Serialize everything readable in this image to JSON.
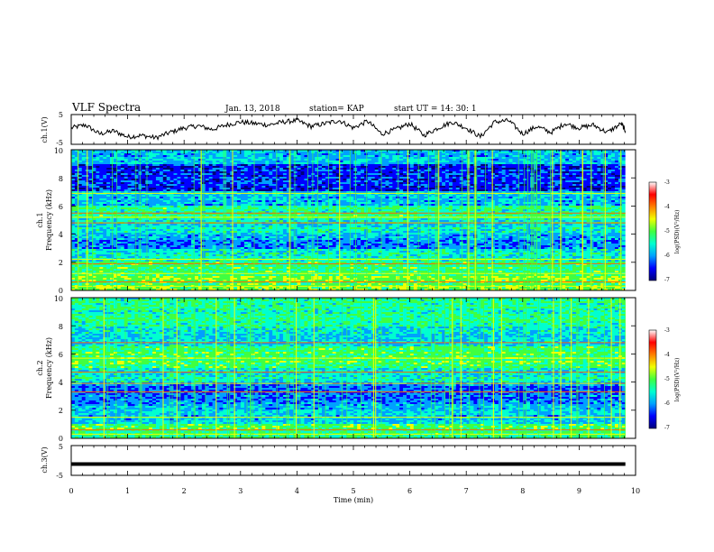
{
  "header": {
    "title": "VLF Spectra",
    "date": "Jan. 13, 2018",
    "station": "station= KAP",
    "start": "start  UT =   14: 30: 1"
  },
  "colors": {
    "colormap": [
      "#00007a",
      "#0000ff",
      "#00a0ff",
      "#00ffd0",
      "#40ff40",
      "#f0ff00",
      "#ff8000",
      "#ff0000",
      "#ffffff"
    ],
    "trace": "#000000"
  },
  "chart_data": [
    {
      "type": "line",
      "panel": "ch1-voltage",
      "ylabel": "ch.1(V)",
      "ylim": [
        -5,
        5
      ],
      "yticks": [
        "5",
        "-5"
      ],
      "x": [
        0,
        0.25,
        0.5,
        0.75,
        1.0,
        1.25,
        1.5,
        1.75,
        2.0,
        2.25,
        2.5,
        2.75,
        3.0,
        3.25,
        3.5,
        3.75,
        4.0,
        4.25,
        4.5,
        4.75,
        5.0,
        5.25,
        5.5,
        5.75,
        6.0,
        6.25,
        6.5,
        6.75,
        7.0,
        7.25,
        7.5,
        7.75,
        8.0,
        8.25,
        8.5,
        8.75,
        9.0,
        9.25,
        9.5,
        9.75,
        9.82
      ],
      "values": [
        0.5,
        1.5,
        -1.5,
        -0.5,
        -2.5,
        -2.0,
        -2.8,
        -1.0,
        0.5,
        1.2,
        0.0,
        1.5,
        2.5,
        2.0,
        1.5,
        2.5,
        3.0,
        1.0,
        2.0,
        3.0,
        0.5,
        2.8,
        -1.5,
        0.0,
        2.0,
        -2.0,
        0.5,
        2.5,
        0.5,
        -2.5,
        2.5,
        3.0,
        -1.5,
        1.0,
        -1.0,
        2.0,
        0.5,
        1.5,
        -1.0,
        2.0,
        -0.5
      ]
    },
    {
      "type": "heatmap",
      "panel": "ch1-spectrogram",
      "ylabel": "ch.1",
      "ylabel2": "Frequency  (kHz)",
      "ylim": [
        0,
        10
      ],
      "yticks": [
        "0",
        "2",
        "4",
        "6",
        "8",
        "10"
      ],
      "colorbar": {
        "label": "log(PSD)(V²/Hz)",
        "range": [
          -7,
          -3
        ],
        "ticks": [
          "-3",
          "-4",
          "-5",
          "-6",
          "-7"
        ]
      },
      "freq_bands": [
        {
          "f": [
            9.0,
            10.0
          ],
          "level": 0.3
        },
        {
          "f": [
            7.0,
            9.0
          ],
          "level": 0.14
        },
        {
          "f": [
            6.0,
            7.0
          ],
          "level": 0.28
        },
        {
          "f": [
            5.0,
            6.0
          ],
          "level": 0.42
        },
        {
          "f": [
            4.0,
            5.0
          ],
          "level": 0.35
        },
        {
          "f": [
            3.0,
            4.0
          ],
          "level": 0.25
        },
        {
          "f": [
            2.0,
            3.0
          ],
          "level": 0.38
        },
        {
          "f": [
            1.0,
            2.0
          ],
          "level": 0.47
        },
        {
          "f": [
            0.0,
            1.0
          ],
          "level": 0.52
        }
      ],
      "lines_khz": [
        0.3,
        0.6,
        1.2,
        1.9,
        2.2,
        4.8,
        5.2,
        5.5,
        6.9
      ]
    },
    {
      "type": "heatmap",
      "panel": "ch2-spectrogram",
      "ylabel": "ch.2",
      "ylabel2": "Frequency  (kHz)",
      "ylim": [
        0,
        10
      ],
      "yticks": [
        "0",
        "2",
        "4",
        "6",
        "8",
        "10"
      ],
      "colorbar": {
        "label": "log(PSD)(V²/Hz)",
        "range": [
          -7,
          -3
        ],
        "ticks": [
          "-3",
          "-4",
          "-5",
          "-6",
          "-7"
        ]
      },
      "freq_bands": [
        {
          "f": [
            8.0,
            10.0
          ],
          "level": 0.42
        },
        {
          "f": [
            6.5,
            8.0
          ],
          "level": 0.33
        },
        {
          "f": [
            5.0,
            6.5
          ],
          "level": 0.48
        },
        {
          "f": [
            4.0,
            5.0
          ],
          "level": 0.36
        },
        {
          "f": [
            2.5,
            4.0
          ],
          "level": 0.2
        },
        {
          "f": [
            1.0,
            2.5
          ],
          "level": 0.3
        },
        {
          "f": [
            0.0,
            1.0
          ],
          "level": 0.46
        }
      ],
      "lines_khz": [
        0.3,
        0.6,
        1.5,
        3.3,
        3.9,
        4.7,
        5.7,
        6.8
      ]
    },
    {
      "type": "line",
      "panel": "ch3-voltage",
      "ylabel": "ch.3(V)",
      "ylim": [
        -5,
        5
      ],
      "yticks": [
        "5",
        "-5"
      ],
      "x": [
        0,
        9.82
      ],
      "values": [
        -1.2,
        -1.2
      ]
    }
  ],
  "xaxis": {
    "label": "Time  (min)",
    "range": [
      0,
      10
    ],
    "ticks": [
      "0",
      "1",
      "2",
      "3",
      "4",
      "5",
      "6",
      "7",
      "8",
      "9",
      "10"
    ],
    "data_end_min": 9.82
  }
}
